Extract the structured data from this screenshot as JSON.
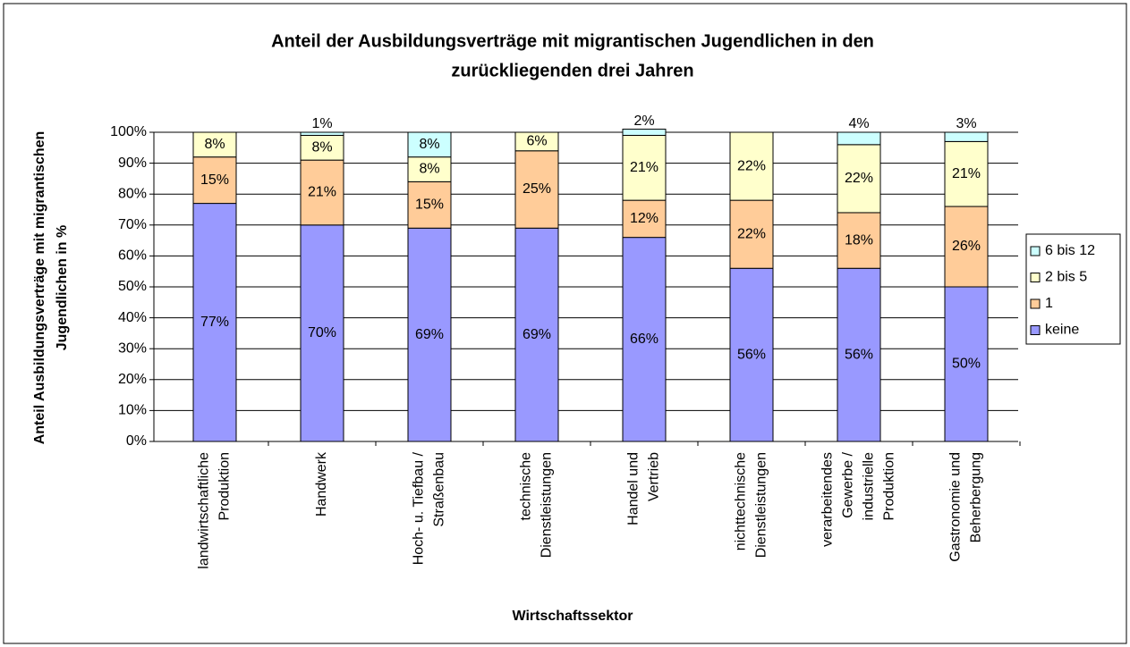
{
  "chart_data": {
    "type": "stacked_bar",
    "title": [
      "Anteil der Ausbildungsverträge mit migrantischen Jugendlichen in den",
      "zurückliegenden drei Jahren"
    ],
    "y_label": [
      "Anteil Ausbildungsverträge mit migrantischen",
      "Jugendlichen in %"
    ],
    "x_label": "Wirtschaftssektor",
    "categories": [
      [
        "landwirtschaftliche",
        "Produktion"
      ],
      [
        "Handwerk"
      ],
      [
        "Hoch- u. Tiefbau /",
        "Straßenbau"
      ],
      [
        "technische",
        "Dienstleistungen"
      ],
      [
        "Handel und",
        "Vertrieb"
      ],
      [
        "nichttechnische",
        "Dienstleistungen"
      ],
      [
        "verarbeitendes",
        "Gewerbe /",
        "industrielle",
        "Produktion"
      ],
      [
        "Gastronomie und",
        "Beherbergung"
      ]
    ],
    "series": [
      {
        "name": "keine",
        "color": "#9999ff",
        "values": [
          77,
          70,
          69,
          69,
          66,
          56,
          56,
          50
        ],
        "value_labels": [
          "77%",
          "70%",
          "69%",
          "69%",
          "66%",
          "56%",
          "56%",
          "50%"
        ]
      },
      {
        "name": "1",
        "color": "#ffcc99",
        "values": [
          15,
          21,
          15,
          25,
          12,
          22,
          18,
          26
        ],
        "value_labels": [
          "15%",
          "21%",
          "15%",
          "25%",
          "12%",
          "22%",
          "18%",
          "26%"
        ]
      },
      {
        "name": "2 bis 5",
        "color": "#ffffcc",
        "values": [
          8,
          8,
          8,
          6,
          21,
          22,
          22,
          21
        ],
        "value_labels": [
          "8%",
          "8%",
          "8%",
          "6%",
          "21%",
          "22%",
          "22%",
          "21%"
        ]
      },
      {
        "name": "6 bis 12",
        "color": "#ccffff",
        "values": [
          null,
          1,
          8,
          null,
          2,
          null,
          4,
          3
        ],
        "value_labels": [
          null,
          "1%",
          "8%",
          null,
          "2%",
          null,
          "4%",
          "3%"
        ]
      }
    ],
    "ylim": [
      0,
      100
    ],
    "yticks": [
      {
        "value": 0,
        "label": "0%"
      },
      {
        "value": 10,
        "label": "10%"
      },
      {
        "value": 20,
        "label": "20%"
      },
      {
        "value": 30,
        "label": "30%"
      },
      {
        "value": 40,
        "label": "40%"
      },
      {
        "value": 50,
        "label": "50%"
      },
      {
        "value": 60,
        "label": "60%"
      },
      {
        "value": 70,
        "label": "70%"
      },
      {
        "value": 80,
        "label": "80%"
      },
      {
        "value": 90,
        "label": "90%"
      },
      {
        "value": 100,
        "label": "100%"
      }
    ],
    "grid": true,
    "legend": "right"
  }
}
